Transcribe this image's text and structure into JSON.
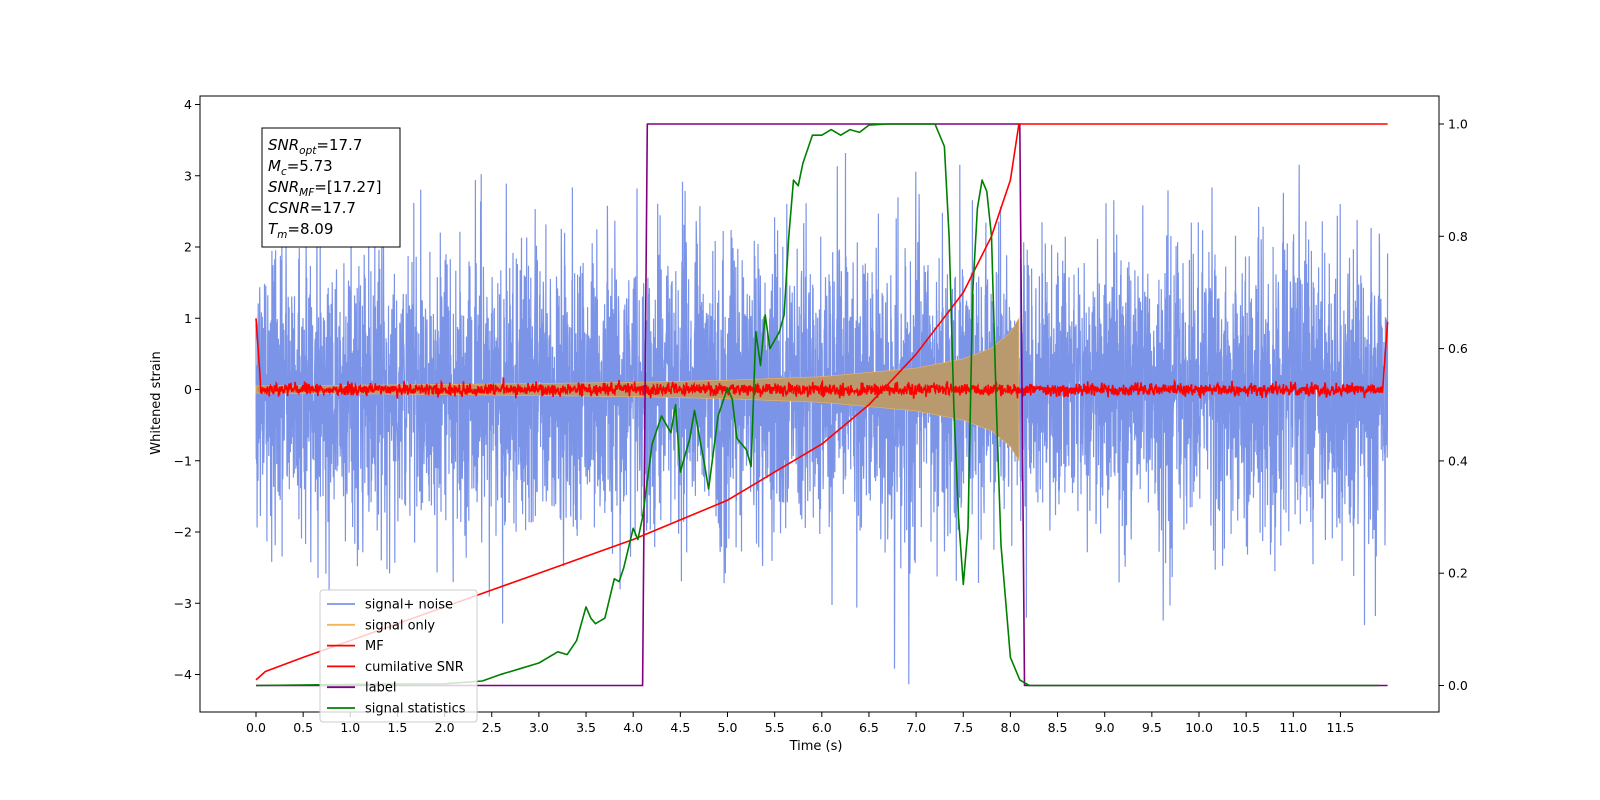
{
  "chart_data": {
    "type": "line",
    "xlabel": "Time (s)",
    "ylabel": "Whitened strain",
    "xlim": [
      -0.6,
      12.6
    ],
    "ylim": [
      -4.5,
      4.1
    ],
    "y2lim": [
      -0.05,
      1.04
    ],
    "grid": false,
    "legend_position": "lower-left",
    "x_ticks": [
      "0.0",
      "0.5",
      "1.0",
      "1.5",
      "2.0",
      "2.5",
      "3.0",
      "3.5",
      "4.0",
      "4.5",
      "5.0",
      "5.5",
      "6.0",
      "6.5",
      "7.0",
      "7.5",
      "8.0",
      "8.5",
      "9.0",
      "9.5",
      "10.0",
      "10.5",
      "11.0",
      "11.5"
    ],
    "y_ticks": [
      "4",
      "3",
      "2",
      "1",
      "0",
      "−1",
      "−2",
      "−3",
      "−4"
    ],
    "y2_ticks": [
      "1.0",
      "0.8",
      "0.6",
      "0.4",
      "0.2",
      "0.0"
    ],
    "annotation": {
      "lines": [
        {
          "sym": "SNR",
          "sub": "opt",
          "val": "=17.7"
        },
        {
          "sym": "M",
          "sub": "c",
          "val": "=5.73"
        },
        {
          "sym": "SNR",
          "sub": "MF",
          "val": "=[17.27]"
        },
        {
          "sym": "CSNR",
          "sub": "",
          "val": "=17.7"
        },
        {
          "sym": "T",
          "sub": "m",
          "val": "=8.09"
        }
      ]
    },
    "series": [
      {
        "name": "signal+ noise",
        "color": "#7b94e8",
        "axis": "left",
        "description": "whitened noise plus signal, roughly N(0,1) with peaks near ±3.5",
        "x_range": [
          0.0,
          12.0
        ],
        "typical_amplitude": 3.4,
        "max": 3.7,
        "min": -4.15
      },
      {
        "name": "signal only",
        "color": "#f5b35a",
        "axis": "left",
        "description": "chirp envelope growing from ~0.05 at 0.0 s to ~1.0 at 8.09 s, zero afterwards",
        "x": [
          0.0,
          2.0,
          4.0,
          5.0,
          6.0,
          7.0,
          7.5,
          7.8,
          8.0,
          8.09
        ],
        "envelope": [
          0.05,
          0.07,
          0.1,
          0.13,
          0.18,
          0.3,
          0.43,
          0.58,
          0.8,
          1.0
        ]
      },
      {
        "name": "MF",
        "color": "#ff0000",
        "axis": "left",
        "description": "matched filter output, near zero with small noise, edge spikes at 0.0 s and 12.0 s",
        "x": [
          0.0,
          0.05,
          11.95,
          12.0
        ],
        "y": [
          1.0,
          0.05,
          0.05,
          0.95
        ],
        "noise_amplitude": 0.08
      },
      {
        "name": "cumilative SNR",
        "color": "#ff0000",
        "axis": "right",
        "x": [
          0.0,
          0.1,
          0.5,
          1.0,
          1.5,
          2.0,
          2.5,
          3.0,
          3.5,
          4.0,
          4.5,
          5.0,
          5.5,
          6.0,
          6.5,
          7.0,
          7.5,
          7.8,
          8.0,
          8.09,
          12.0
        ],
        "y": [
          0.01,
          0.025,
          0.05,
          0.08,
          0.11,
          0.14,
          0.17,
          0.2,
          0.23,
          0.26,
          0.295,
          0.33,
          0.38,
          0.43,
          0.5,
          0.59,
          0.7,
          0.8,
          0.9,
          1.0,
          1.0
        ]
      },
      {
        "name": "label",
        "color": "#800080",
        "axis": "right",
        "x": [
          0.0,
          4.1,
          4.15,
          8.1,
          8.15,
          12.0
        ],
        "y": [
          0.0,
          0.0,
          1.0,
          1.0,
          0.0,
          0.0
        ]
      },
      {
        "name": "signal statistics",
        "color": "#008000",
        "axis": "right",
        "x": [
          0.0,
          1.0,
          2.0,
          2.4,
          2.6,
          2.8,
          3.0,
          3.2,
          3.3,
          3.4,
          3.5,
          3.55,
          3.6,
          3.7,
          3.8,
          3.85,
          3.9,
          4.0,
          4.05,
          4.1,
          4.2,
          4.3,
          4.4,
          4.45,
          4.5,
          4.6,
          4.65,
          4.75,
          4.8,
          4.9,
          5.0,
          5.05,
          5.1,
          5.2,
          5.25,
          5.3,
          5.35,
          5.4,
          5.45,
          5.55,
          5.6,
          5.65,
          5.7,
          5.75,
          5.8,
          5.9,
          6.0,
          6.1,
          6.2,
          6.3,
          6.4,
          6.5,
          6.7,
          7.0,
          7.2,
          7.3,
          7.35,
          7.4,
          7.45,
          7.5,
          7.55,
          7.6,
          7.65,
          7.7,
          7.75,
          7.8,
          7.85,
          7.9,
          8.0,
          8.1,
          8.2,
          9.0,
          10.0,
          11.0,
          11.9
        ],
        "y": [
          0.0,
          0.002,
          0.003,
          0.008,
          0.02,
          0.03,
          0.04,
          0.06,
          0.055,
          0.08,
          0.14,
          0.12,
          0.11,
          0.12,
          0.19,
          0.185,
          0.21,
          0.28,
          0.26,
          0.3,
          0.43,
          0.48,
          0.45,
          0.5,
          0.38,
          0.44,
          0.49,
          0.4,
          0.35,
          0.48,
          0.53,
          0.51,
          0.44,
          0.42,
          0.39,
          0.63,
          0.57,
          0.66,
          0.6,
          0.63,
          0.66,
          0.8,
          0.9,
          0.89,
          0.93,
          0.98,
          0.98,
          0.99,
          0.98,
          0.99,
          0.985,
          0.998,
          1.0,
          1.0,
          1.0,
          0.96,
          0.8,
          0.5,
          0.3,
          0.18,
          0.28,
          0.7,
          0.85,
          0.9,
          0.88,
          0.8,
          0.5,
          0.25,
          0.05,
          0.01,
          0.0,
          0.0,
          0.0,
          0.0,
          0.0
        ]
      }
    ]
  }
}
